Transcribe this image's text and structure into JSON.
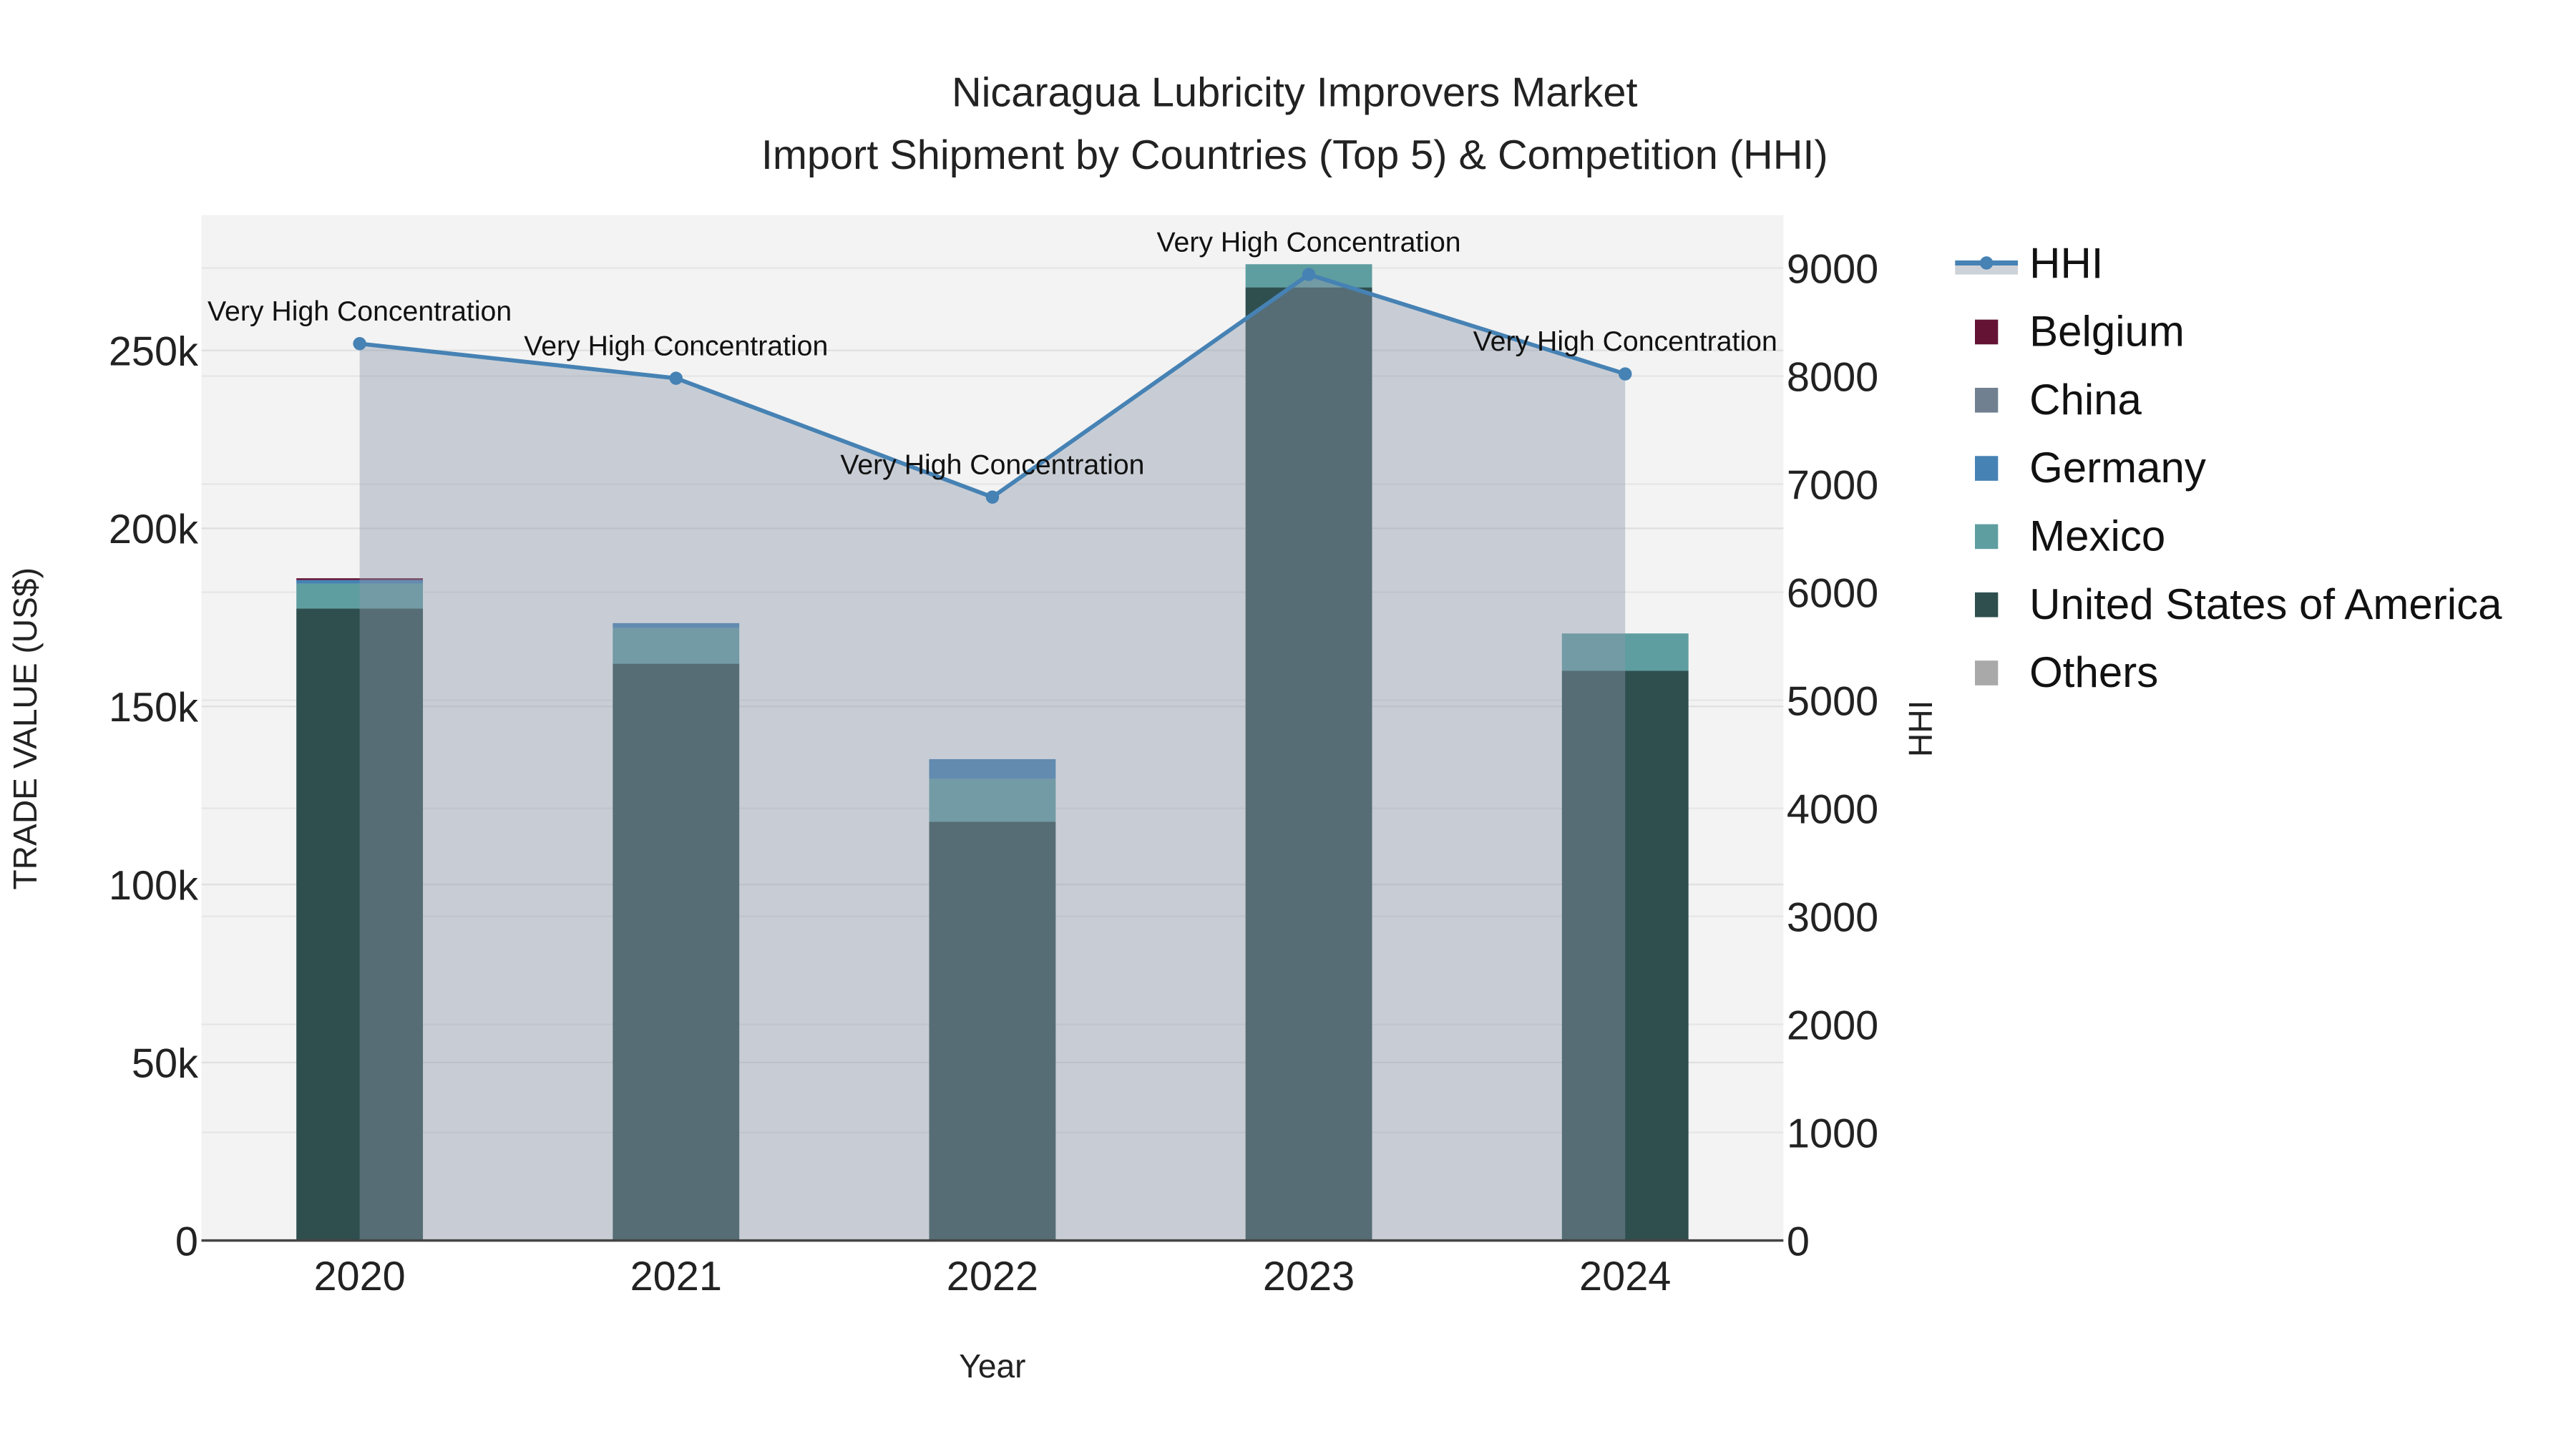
{
  "chart_data": {
    "type": "bar",
    "title": "Nicaragua Lubricity Improvers Market",
    "subtitle": "Import Shipment by Countries (Top 5) & Competition (HHI)",
    "xlabel": "Year",
    "ylabel": "TRADE VALUE (US$)",
    "y2label": "HHI",
    "categories": [
      "2020",
      "2021",
      "2022",
      "2023",
      "2024"
    ],
    "ylim": [
      0,
      288000
    ],
    "y2lim": [
      0,
      9490
    ],
    "yticks": [
      0,
      50000,
      100000,
      150000,
      200000,
      250000
    ],
    "ytick_labels": [
      "0",
      "50k",
      "100k",
      "150k",
      "200k",
      "250k"
    ],
    "y2ticks": [
      0,
      1000,
      2000,
      3000,
      4000,
      5000,
      6000,
      7000,
      8000,
      9000
    ],
    "y2tick_labels": [
      "0",
      "1000",
      "2000",
      "3000",
      "4000",
      "5000",
      "6000",
      "7000",
      "8000",
      "9000"
    ],
    "grid": true,
    "barmode": "stack",
    "legend_position": "right",
    "series": [
      {
        "name": "United States of America",
        "color": "#2F4F4F",
        "values": [
          177500,
          162000,
          117600,
          267700,
          160000
        ]
      },
      {
        "name": "Mexico",
        "color": "#5F9EA0",
        "values": [
          7000,
          10000,
          12000,
          6500,
          10500
        ]
      },
      {
        "name": "Germany",
        "color": "#4682B4",
        "values": [
          1000,
          1400,
          5600,
          0,
          0
        ]
      },
      {
        "name": "China",
        "color": "#708090",
        "values": [
          0,
          0,
          0,
          0,
          0
        ]
      },
      {
        "name": "Belgium",
        "color": "#641335",
        "values": [
          500,
          0,
          0,
          0,
          0
        ]
      },
      {
        "name": "Others",
        "color": "#A9A9A9",
        "values": [
          0,
          0,
          0,
          0,
          0
        ]
      }
    ],
    "hhi": {
      "name": "HHI",
      "color": "#4682B4",
      "values": [
        8300,
        7980,
        6880,
        8940,
        8020
      ],
      "annotations": [
        "Very High Concentration",
        "Very High Concentration",
        "Very High Concentration",
        "Very High Concentration",
        "Very High Concentration"
      ]
    },
    "legend": [
      "HHI",
      "Belgium",
      "China",
      "Germany",
      "Mexico",
      "United States of America",
      "Others"
    ]
  }
}
